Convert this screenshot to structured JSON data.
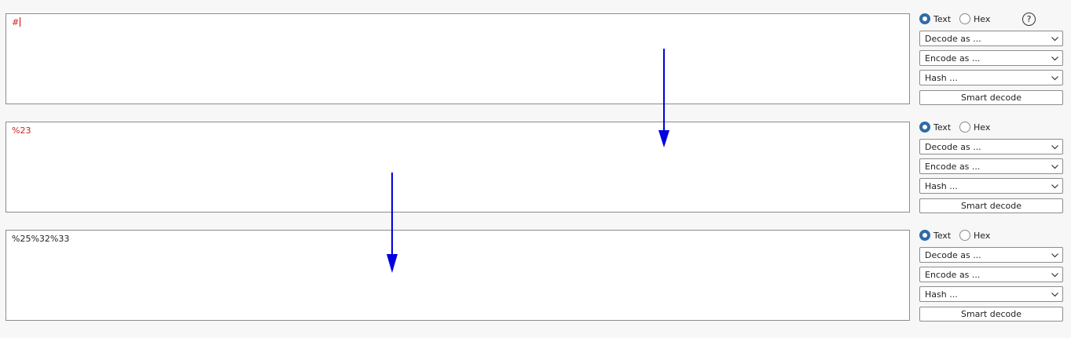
{
  "panels": [
    {
      "content": "#",
      "content_color": "#d42020",
      "radio_text_label": "Text",
      "radio_hex_label": "Hex",
      "selected": "text",
      "decode_label": "Decode as ...",
      "encode_label": "Encode as ...",
      "hash_label": "Hash ...",
      "smart_decode_label": "Smart decode",
      "help_label": "?"
    },
    {
      "content": "%23",
      "content_color": "#d42020",
      "radio_text_label": "Text",
      "radio_hex_label": "Hex",
      "selected": "text",
      "decode_label": "Decode as ...",
      "encode_label": "Encode as ...",
      "hash_label": "Hash ...",
      "smart_decode_label": "Smart decode"
    },
    {
      "content": "%25%32%33",
      "content_color": "#222222",
      "radio_text_label": "Text",
      "radio_hex_label": "Hex",
      "selected": "text",
      "decode_label": "Decode as ...",
      "encode_label": "Encode as ...",
      "hash_label": "Hash ...",
      "smart_decode_label": "Smart decode"
    }
  ],
  "colors": {
    "accent": "#2e6ca8",
    "annotation_arrow": "#0000e0"
  },
  "icons": {
    "help": "question-circle-icon",
    "dropdown": "chevron-down-icon"
  }
}
